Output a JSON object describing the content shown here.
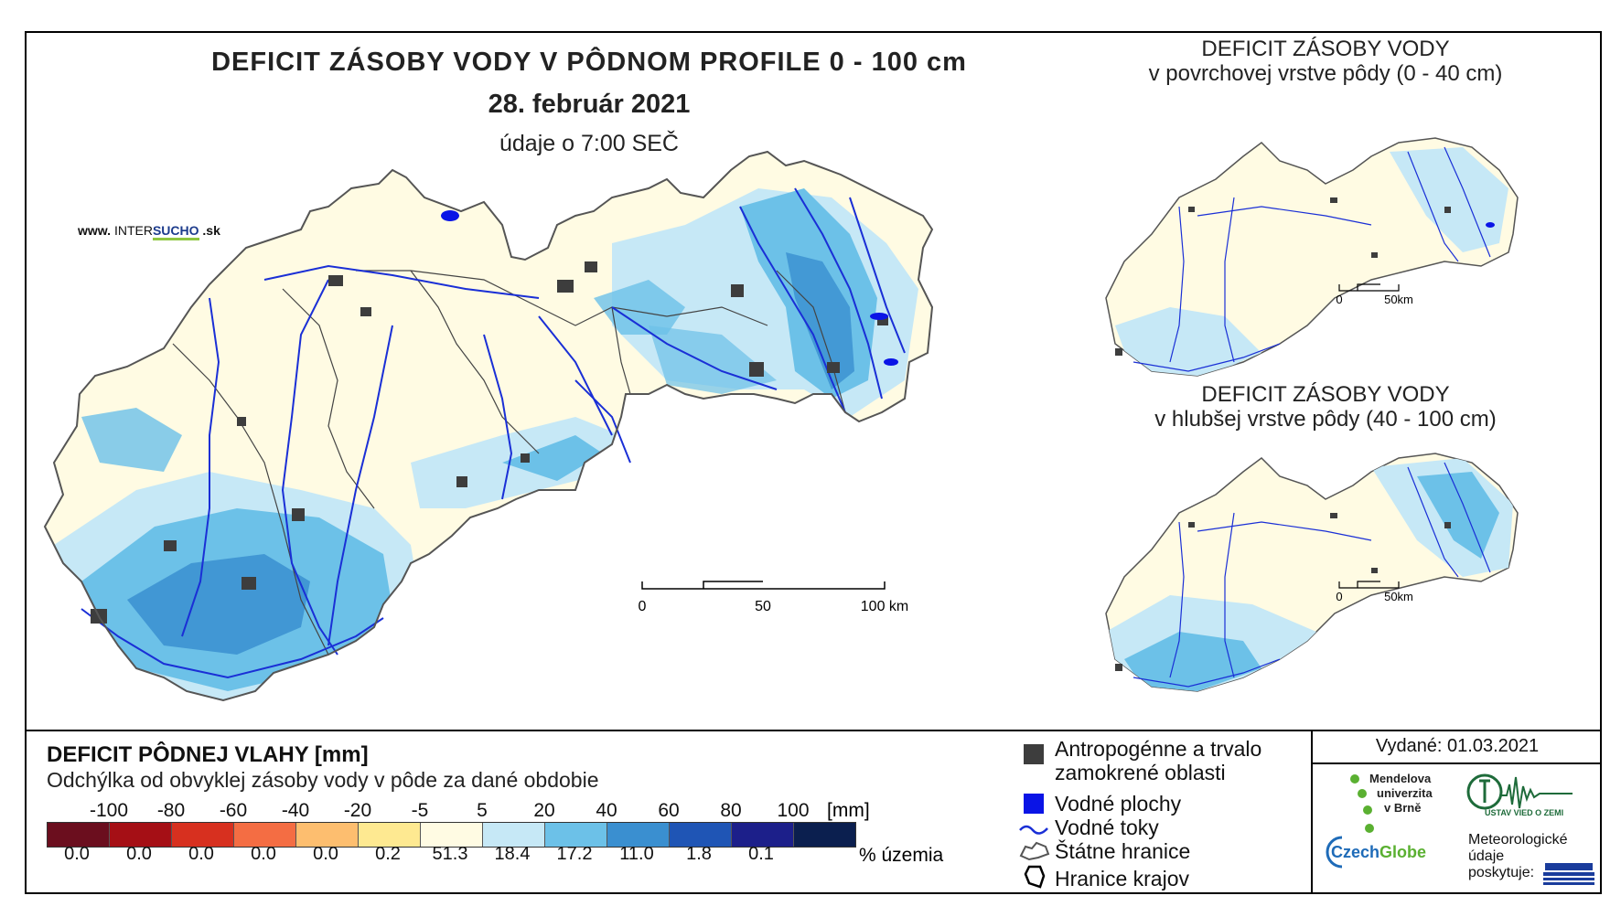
{
  "titles": {
    "main": "DEFICIT ZÁSOBY VODY V PÔDNOM PROFILE 0 - 100 cm",
    "date": "28. február 2021",
    "time": "údaje o 7:00 SEČ"
  },
  "site": {
    "prefix": "www. ",
    "brand_a": "INTER",
    "brand_b": "SUCHO",
    "suffix": " .sk"
  },
  "insets": [
    {
      "title_line1": "DEFICIT ZÁSOBY VODY",
      "title_line2": "v povrchovej vrstve pôdy (0 - 40 cm)",
      "scale_zero": "0",
      "scale_end": "50km"
    },
    {
      "title_line1": "DEFICIT ZÁSOBY VODY",
      "title_line2": "v hlubšej vrstve pôdy (40 - 100 cm)",
      "scale_zero": "0",
      "scale_end": "50km"
    }
  ],
  "main_scale": {
    "zero": "0",
    "mid": "50",
    "end": "100 km"
  },
  "legend": {
    "title": "DEFICIT PÔDNEJ VLAHY [mm]",
    "subtitle": "Odchýlka od obvyklej zásoby vody v pôde za dané obdobie",
    "unit": "[mm]",
    "percent_label": "% územia",
    "breaks": [
      "-100",
      "-80",
      "-60",
      "-40",
      "-20",
      "-5",
      "5",
      "20",
      "40",
      "60",
      "80",
      "100"
    ],
    "classes": [
      {
        "color": "#6b0e1e",
        "percent": "0.0"
      },
      {
        "color": "#a50f15",
        "percent": "0.0"
      },
      {
        "color": "#d7301f",
        "percent": "0.0"
      },
      {
        "color": "#f46d43",
        "percent": "0.0"
      },
      {
        "color": "#fdbe6f",
        "percent": "0.0"
      },
      {
        "color": "#fee991",
        "percent": "0.2"
      },
      {
        "color": "#fffbe3",
        "percent": "51.3"
      },
      {
        "color": "#c6e8f6",
        "percent": "18.4"
      },
      {
        "color": "#6cc1e8",
        "percent": "17.2"
      },
      {
        "color": "#3a8fd0",
        "percent": "11.0"
      },
      {
        "color": "#1f55b5",
        "percent": "1.8"
      },
      {
        "color": "#1c1f8a",
        "percent": "0.1"
      },
      {
        "color": "#0b1f4f",
        "percent": ""
      }
    ]
  },
  "symbols": {
    "anthropogenic": "Antropogénne a trvalo zamokrené oblasti",
    "water_bodies": "Vodné plochy",
    "water_courses": "Vodné toky",
    "state_border": "Štátne hranice",
    "region_border": "Hranice krajov"
  },
  "issued": "Vydané: 01.03.2021",
  "logos": {
    "mendel": [
      "Mendelova",
      "univerzita",
      "v Brně"
    ],
    "ustav": "ÚSTAV VIED O ZEMI",
    "czechglobe_a": "Czech",
    "czechglobe_b": "Globe",
    "meteo": [
      "Meteorologické",
      "údaje",
      "poskytuje:"
    ]
  },
  "colors": {
    "land": "#fffbe3",
    "light_blue": "#c6e8f6",
    "mid_blue": "#6cc1e8",
    "dark_blue": "#3a8fd0",
    "river": "#1a2fd6",
    "urban": "#3d3d3d",
    "water": "#0a14e6"
  }
}
